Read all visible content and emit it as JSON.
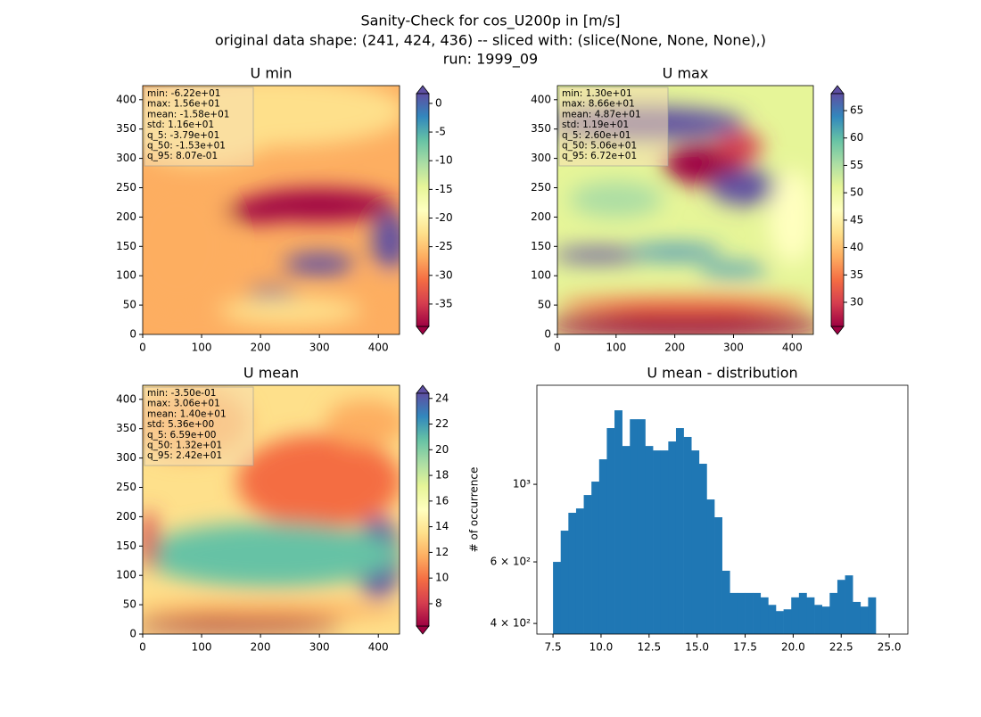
{
  "title": [
    "Sanity-Check for cos_U200p in [m/s]",
    "original data shape: (241, 424, 436) -- sliced with: (slice(None, None, None),)",
    "run: 1999_09"
  ],
  "colormap": [
    "#9e0142",
    "#d53e4f",
    "#f46d43",
    "#fdae61",
    "#fee08b",
    "#ffffbf",
    "#e6f598",
    "#abdda4",
    "#66c2a5",
    "#3288bd",
    "#5e4fa2"
  ],
  "chart_data": [
    {
      "type": "heatmap",
      "title": "U min",
      "xlim": [
        0,
        436
      ],
      "ylim": [
        0,
        424
      ],
      "xticks": [
        0,
        100,
        200,
        300,
        400
      ],
      "yticks": [
        0,
        50,
        100,
        150,
        200,
        250,
        300,
        350,
        400
      ],
      "colorbar": {
        "lim": [
          -38.9,
          1.7
        ],
        "ticks": [
          0,
          -5,
          -10,
          -15,
          -20,
          -25,
          -30,
          -35
        ]
      },
      "stats": [
        "min: -6.22e+01",
        "max: 1.56e+01",
        "mean: -1.58e+01",
        "std: 1.16e+01",
        "q_5: -3.79e+01",
        "q_50: -1.53e+01",
        "q_95: 8.07e-01"
      ]
    },
    {
      "type": "heatmap",
      "title": "U max",
      "xlim": [
        0,
        436
      ],
      "ylim": [
        0,
        424
      ],
      "xticks": [
        0,
        100,
        200,
        300,
        400
      ],
      "yticks": [
        0,
        50,
        100,
        150,
        200,
        250,
        300,
        350,
        400
      ],
      "colorbar": {
        "lim": [
          25.6,
          68.1
        ],
        "ticks": [
          30,
          35,
          40,
          45,
          50,
          55,
          60,
          65
        ]
      },
      "stats": [
        "min: 1.30e+01",
        "max: 8.66e+01",
        "mean: 4.87e+01",
        "std: 1.19e+01",
        "q_5: 2.60e+01",
        "q_50: 5.06e+01",
        "q_95: 6.72e+01"
      ]
    },
    {
      "type": "heatmap",
      "title": "U mean",
      "xlim": [
        0,
        436
      ],
      "ylim": [
        0,
        424
      ],
      "xticks": [
        0,
        100,
        200,
        300,
        400
      ],
      "yticks": [
        0,
        50,
        100,
        150,
        200,
        250,
        300,
        350,
        400
      ],
      "colorbar": {
        "lim": [
          6.26,
          24.4
        ],
        "ticks": [
          8,
          10,
          12,
          14,
          16,
          18,
          20,
          22,
          24
        ]
      },
      "stats": [
        "min: -3.50e-01",
        "max: 3.06e+01",
        "mean: 1.40e+01",
        "std: 5.36e+00",
        "q_5: 6.59e+00",
        "q_50: 1.32e+01",
        "q_95: 2.42e+01"
      ]
    },
    {
      "type": "histogram",
      "title": "U mean - distribution",
      "ylabel": "# of occurrence",
      "color": "#1f77b4",
      "ylog": true,
      "xlim": [
        6.66,
        25.97
      ],
      "ylim": [
        373,
        1920
      ],
      "xticks": [
        7.5,
        {
          "value": 10,
          "label": "10.0"
        },
        12.5,
        {
          "value": 15,
          "label": "15.0"
        },
        17.5,
        {
          "value": 20,
          "label": "20.0"
        },
        22.5,
        {
          "value": 25,
          "label": "25.0"
        }
      ],
      "yticks": [
        {
          "value": 400,
          "label": "4 × 10²"
        },
        {
          "value": 600,
          "label": "6 × 10²"
        },
        {
          "value": 1000,
          "label": "10³"
        }
      ],
      "bins": [
        7.5,
        7.9,
        8.3,
        8.7,
        9.1,
        9.5,
        9.9,
        10.3,
        10.7,
        11.1,
        11.5,
        11.9,
        12.3,
        12.7,
        13.1,
        13.5,
        13.9,
        14.3,
        14.7,
        15.1,
        15.5,
        15.9,
        16.3,
        16.7,
        17.1,
        17.5,
        17.9,
        18.3,
        18.7,
        19.1,
        19.5,
        19.9,
        20.3,
        20.7,
        21.1,
        21.5,
        21.9,
        22.3,
        22.7,
        23.1,
        23.5,
        23.9,
        24.3
      ],
      "values": [
        600,
        737,
        829,
        853,
        932,
        1018,
        1179,
        1448,
        1628,
        1287,
        1535,
        1535,
        1287,
        1250,
        1250,
        1326,
        1448,
        1366,
        1250,
        1145,
        905,
        805,
        566,
        489,
        489,
        489,
        489,
        475,
        452,
        434,
        439,
        475,
        489,
        475,
        452,
        447,
        489,
        533,
        549,
        461,
        447,
        475
      ]
    }
  ]
}
